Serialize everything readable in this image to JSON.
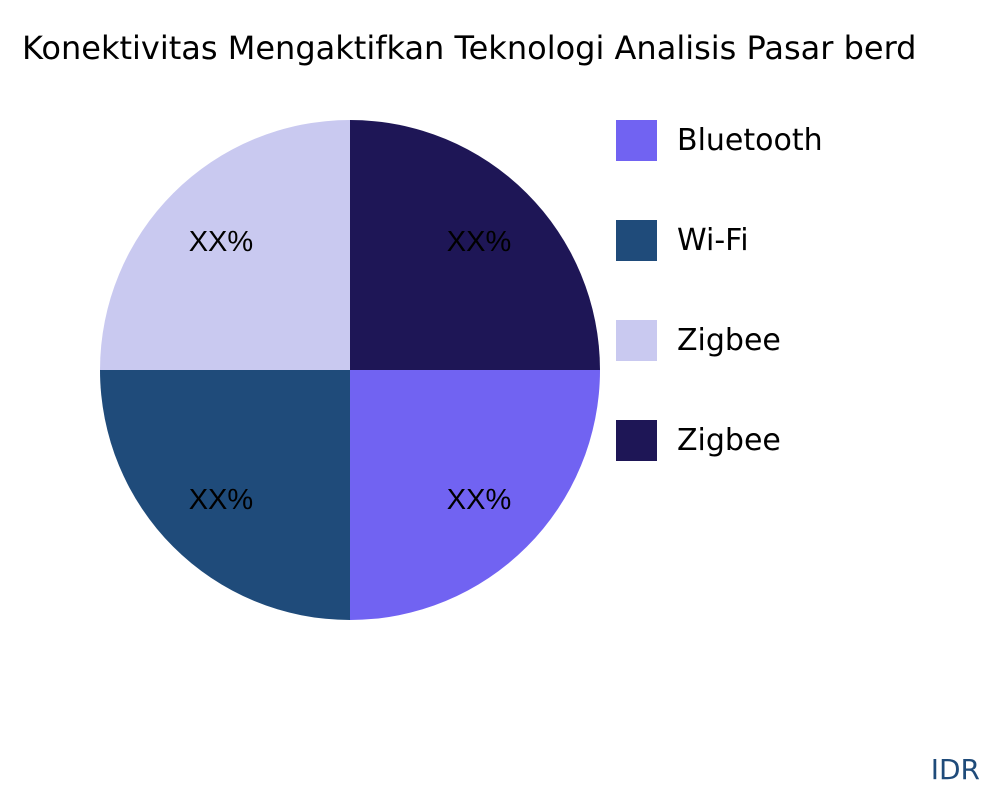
{
  "chart_data": {
    "type": "pie",
    "title": "Konektivitas Mengaktifkan Teknologi Analisis Pasar berd",
    "categories": [
      "Bluetooth",
      "Wi-Fi",
      "Zigbee",
      "Zigbee"
    ],
    "values": [
      25,
      25,
      25,
      25
    ],
    "value_labels": [
      "XX%",
      "XX%",
      "XX%",
      "XX%"
    ],
    "colors": [
      "#7163f2",
      "#1f4b7a",
      "#c9c9f0",
      "#1e1656"
    ],
    "legend": "right",
    "watermark": "IDR"
  }
}
